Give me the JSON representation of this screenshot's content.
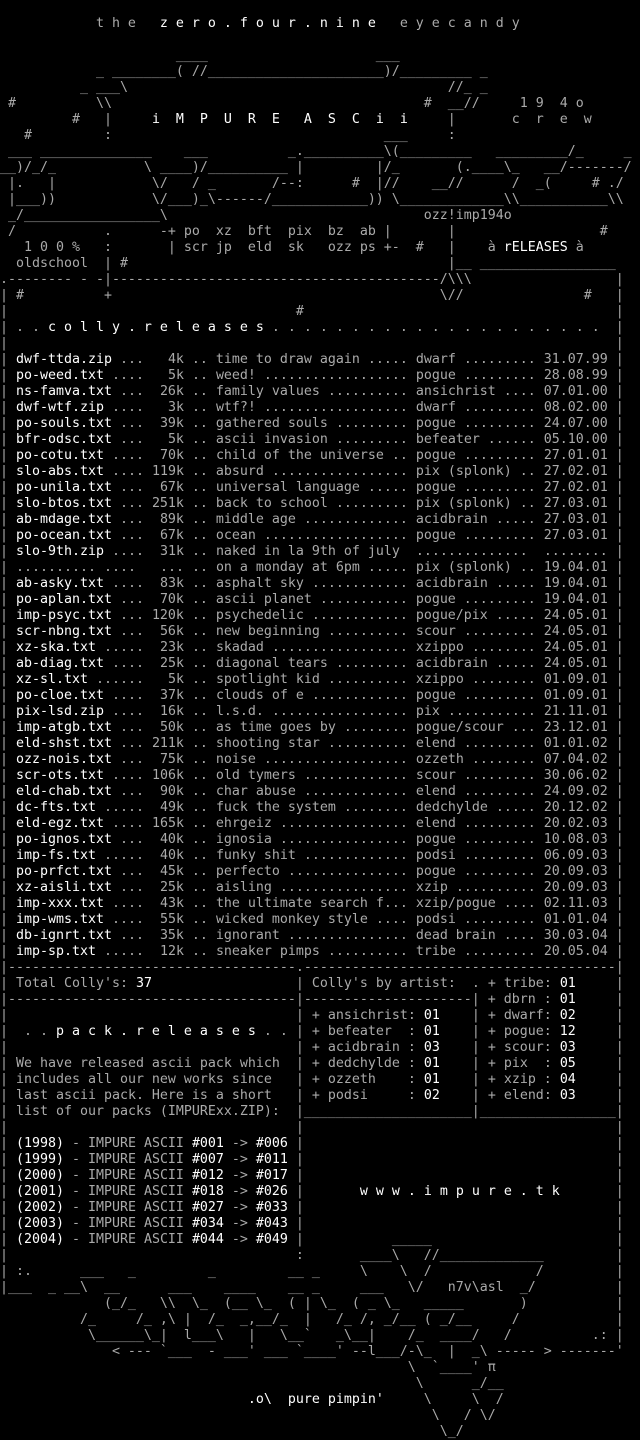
{
  "colors": {
    "background": "#000000",
    "text": "#aaaaaa",
    "bright": "#ffffff"
  },
  "header": {
    "lines": [
      [
        ""
      ],
      [
        "            t h e   ",
        {
          "hi": "z e r o . f o u r . n i n e"
        },
        "   e y e c a n d y"
      ],
      [
        ""
      ],
      [
        "                      ____                     ___"
      ],
      [
        "            _ ________( //______________________)/_________ _"
      ],
      [
        "          _ ___\\                                        //_ _"
      ],
      [
        " #          \\\\                                       #  __//     1 9  4 o"
      ],
      [
        "         #   |     ",
        {
          "hi": "i  M  P  U  R  E   A  S  C  i  i"
        },
        "     |       c  r  e  w"
      ],
      [
        "   #         :                                  ___     :"
      ],
      [
        " ___ ______________    ___          _.__________\\(_________   _________/_     _"
      ],
      [
        "__)/_/_           \\ ____)/__________ |         |/_       (.____\\_   __/-------/"
      ],
      [
        " |.   |            \\/   / _       /--:      #  |//    __//      /  _(     # ./"
      ],
      [
        " |___))            \\/___)_\\------/____________)) \\_____________\\\\___________\\\\"
      ],
      [
        " _/_________________\\                                ozz!imp194o"
      ],
      [
        " /           .      -+ po  xz  bft  pix  bz  ab |       |                  #"
      ],
      [
        "   1 0 0 %   :       | scr jp  eld  sk   ozz ps +-  #   |    à ",
        {
          "hi": "rELEASES"
        },
        " à"
      ],
      [
        "  oldschool  | #                                        |__ _________________"
      ],
      [
        ".-------- - -|-----------------------------------------/\\\\\\                  |"
      ],
      [
        "| #          +                                         \\//               #   |"
      ],
      [
        "|                                    #                                       |"
      ],
      [
        "| . . ",
        {
          "hi": "c o l l y . r e l e a s e s"
        },
        " . . . . . . . . . . . . . . . . . . . . .  |"
      ],
      [
        "|                                                                            |"
      ]
    ]
  },
  "releases": {
    "rows": [
      {
        "file": "dwf-ttda.zip",
        "size": "4k",
        "title": "time to draw again",
        "artist": "dwarf",
        "date": "31.07.99"
      },
      {
        "file": "po-weed.txt",
        "size": "5k",
        "title": "weed!",
        "artist": "pogue",
        "date": "28.08.99"
      },
      {
        "file": "ns-famva.txt",
        "size": "26k",
        "title": "family values",
        "artist": "ansichrist",
        "date": "07.01.00"
      },
      {
        "file": "dwf-wtf.zip",
        "size": "3k",
        "title": "wtf?!",
        "artist": "dwarf",
        "date": "08.02.00"
      },
      {
        "file": "po-souls.txt",
        "size": "39k",
        "title": "gathered souls",
        "artist": "pogue",
        "date": "24.07.00"
      },
      {
        "file": "bfr-odsc.txt",
        "size": "5k",
        "title": "ascii invasion",
        "artist": "befeater",
        "date": "05.10.00"
      },
      {
        "file": "po-cotu.txt",
        "size": "70k",
        "title": "child of the universe",
        "artist": "pogue",
        "date": "27.01.01"
      },
      {
        "file": "slo-abs.txt",
        "size": "119k",
        "title": "absurd",
        "artist": "pix (splonk)",
        "date": "27.02.01"
      },
      {
        "file": "po-unila.txt",
        "size": "67k",
        "title": "universal language",
        "artist": "pogue",
        "date": "27.02.01"
      },
      {
        "file": "slo-btos.txt",
        "size": "251k",
        "title": "back to school",
        "artist": "pix (splonk)",
        "date": "27.03.01"
      },
      {
        "file": "ab-mdage.txt",
        "size": "89k",
        "title": "middle age",
        "artist": "acidbrain",
        "date": "27.03.01"
      },
      {
        "file": "po-ocean.txt",
        "size": "67k",
        "title": "ocean",
        "artist": "pogue",
        "date": "27.03.01"
      },
      {
        "file": "slo-9th.zip",
        "size": "31k",
        "title": "naked in la 9th of july",
        "artist": "",
        "date": ""
      },
      {
        "file": "",
        "size": "...",
        "title": "on a monday at 6pm",
        "artist": "pix (splonk)",
        "date": "19.04.01"
      },
      {
        "file": "ab-asky.txt",
        "size": "83k",
        "title": "asphalt sky",
        "artist": "acidbrain",
        "date": "19.04.01"
      },
      {
        "file": "po-aplan.txt",
        "size": "70k",
        "title": "ascii planet",
        "artist": "pogue",
        "date": "19.04.01"
      },
      {
        "file": "imp-psyc.txt",
        "size": "120k",
        "title": "psychedelic",
        "artist": "pogue/pix",
        "date": "24.05.01"
      },
      {
        "file": "scr-nbng.txt",
        "size": "56k",
        "title": "new beginning",
        "artist": "scour",
        "date": "24.05.01"
      },
      {
        "file": "xz-ska.txt",
        "size": "23k",
        "title": "skadad",
        "artist": "xzippo",
        "date": "24.05.01"
      },
      {
        "file": "ab-diag.txt",
        "size": "25k",
        "title": "diagonal tears",
        "artist": "acidbrain",
        "date": "24.05.01"
      },
      {
        "file": "xz-sl.txt",
        "size": "5k",
        "title": "spotlight kid",
        "artist": "xzippo",
        "date": "01.09.01"
      },
      {
        "file": "po-cloe.txt",
        "size": "37k",
        "title": "clouds of e",
        "artist": "pogue",
        "date": "01.09.01"
      },
      {
        "file": "pix-lsd.zip",
        "size": "16k",
        "title": "l.s.d.",
        "artist": "pix",
        "date": "21.11.01"
      },
      {
        "file": "imp-atgb.txt",
        "size": "50k",
        "title": "as time goes by",
        "artist": "pogue/scour",
        "date": "23.12.01"
      },
      {
        "file": "eld-shst.txt",
        "size": "211k",
        "title": "shooting star",
        "artist": "elend",
        "date": "01.01.02"
      },
      {
        "file": "ozz-nois.txt",
        "size": "75k",
        "title": "noise",
        "artist": "ozzeth",
        "date": "07.04.02"
      },
      {
        "file": "scr-ots.txt",
        "size": "106k",
        "title": "old tymers",
        "artist": "scour",
        "date": "30.06.02"
      },
      {
        "file": "eld-chab.txt",
        "size": "90k",
        "title": "char abuse",
        "artist": "elend",
        "date": "24.09.02"
      },
      {
        "file": "dc-fts.txt",
        "size": "49k",
        "title": "fuck the system",
        "artist": "dedchylde",
        "date": "20.12.02"
      },
      {
        "file": "eld-egz.txt",
        "size": "165k",
        "title": "ehrgeiz",
        "artist": "elend",
        "date": "20.02.03"
      },
      {
        "file": "po-ignos.txt",
        "size": "40k",
        "title": "ignosia",
        "artist": "pogue",
        "date": "10.08.03"
      },
      {
        "file": "imp-fs.txt",
        "size": "40k",
        "title": "funky shit",
        "artist": "podsi",
        "date": "06.09.03"
      },
      {
        "file": "po-prfct.txt",
        "size": "45k",
        "title": "perfecto",
        "artist": "pogue",
        "date": "20.09.03"
      },
      {
        "file": "xz-aisli.txt",
        "size": "25k",
        "title": "aisling",
        "artist": "xzip",
        "date": "20.09.03"
      },
      {
        "file": "imp-xxx.txt",
        "size": "43k",
        "title": "the ultimate search f...",
        "artist": "xzip/pogue",
        "date": "02.11.03"
      },
      {
        "file": "imp-wms.txt",
        "size": "55k",
        "title": "wicked monkey style",
        "artist": "podsi",
        "date": "01.01.04"
      },
      {
        "file": "db-ignrt.txt",
        "size": "35k",
        "title": "ignorant",
        "artist": "dead brain",
        "date": "30.03.04"
      },
      {
        "file": "imp-sp.txt",
        "size": "12k",
        "title": "sneaker pimps",
        "artist": "tribe",
        "date": "20.05.04"
      }
    ]
  },
  "summary": {
    "total_label": "Total Colly's:",
    "total": "37",
    "by_artist_label": "Colly's by artist:",
    "artists_left": [
      {
        "name": "ansichrist",
        "count": "01"
      },
      {
        "name": "befeater",
        "count": "01"
      },
      {
        "name": "acidbrain",
        "count": "03"
      },
      {
        "name": "dedchylde",
        "count": "01"
      },
      {
        "name": "ozzeth",
        "count": "01"
      },
      {
        "name": "podsi",
        "count": "02"
      }
    ],
    "artists_right": [
      {
        "name": "tribe",
        "count": "01"
      },
      {
        "name": "dbrn",
        "count": "01"
      },
      {
        "name": "dwarf",
        "count": "02"
      },
      {
        "name": "pogue",
        "count": "12"
      },
      {
        "name": "scour",
        "count": "03"
      },
      {
        "name": "pix",
        "count": "05"
      },
      {
        "name": "xzip",
        "count": "04"
      },
      {
        "name": "elend",
        "count": "03"
      }
    ]
  },
  "packs": {
    "heading": "p a c k . r e l e a s e s",
    "intro": [
      "We have released ascii pack which",
      "includes all our new works since",
      "last ascii pack. Here is a short",
      "list of our packs (IMPURExx.ZIP):"
    ],
    "arrow": "->",
    "list": [
      {
        "year": "(1998)",
        "label": "- IMPURE ASCII",
        "from": "#001",
        "to": "#006"
      },
      {
        "year": "(1999)",
        "label": "- IMPURE ASCII",
        "from": "#007",
        "to": "#011"
      },
      {
        "year": "(2000)",
        "label": "- IMPURE ASCII",
        "from": "#012",
        "to": "#017"
      },
      {
        "year": "(2001)",
        "label": "- IMPURE ASCII",
        "from": "#018",
        "to": "#026"
      },
      {
        "year": "(2002)",
        "label": "- IMPURE ASCII",
        "from": "#027",
        "to": "#033"
      },
      {
        "year": "(2003)",
        "label": "- IMPURE ASCII",
        "from": "#034",
        "to": "#043"
      },
      {
        "year": "(2004)",
        "label": "- IMPURE ASCII",
        "from": "#044",
        "to": "#049"
      }
    ]
  },
  "website": "w w w . i m p u r e . t k",
  "footer": {
    "lines": [
      [
        "|                                    :       ____\\   //_____________         |"
      ],
      [
        "| :.      ___   _         _         __ _     \\    \\  /             /         |"
      ],
      [
        "|___  _ __\\  __      ___    ____    __ _     ___   \\/   ",
        "n7v\\asl",
        "  _/          |"
      ],
      [
        "             (_/_   \\\\  \\_  (__ \\_  ( | \\_  ( _ \\_   _____       )           |"
      ],
      [
        "          /_     /_ ,\\ |  /_  _,__/_  |   /_ /, _/__ ( _/__     /            |"
      ],
      [
        "           \\______\\_|  l___\\   |   \\__`   _\\__|    /_  ____/   /          .: |"
      ],
      [
        "              < --- `___  - ___' ___ `____' --l___/-\\_  |  _\\ ----- > -------'"
      ],
      [
        "                                                   \\  `____' π"
      ],
      [
        "                                                    \\      _/__"
      ],
      [
        "                               ",
        {
          "hi": ".o\\  pure pimpin'"
        },
        "     \\     \\  /"
      ],
      [
        "                                                      \\   / \\/"
      ],
      [
        "                                                       \\_/"
      ]
    ]
  }
}
